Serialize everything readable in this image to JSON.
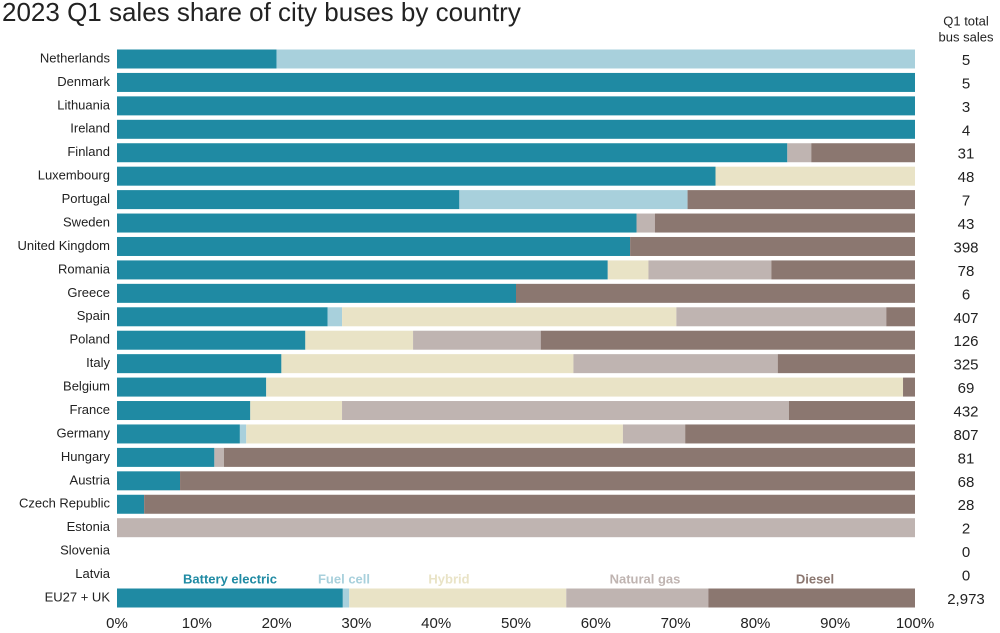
{
  "chart_data": {
    "type": "stacked_bar",
    "orientation": "horizontal",
    "title": "2023 Q1 sales share of city buses by country",
    "categories": [
      "Netherlands",
      "Denmark",
      "Lithuania",
      "Ireland",
      "Finland",
      "Luxembourg",
      "Portugal",
      "Sweden",
      "United Kingdom",
      "Romania",
      "Greece",
      "Spain",
      "Poland",
      "Italy",
      "Belgium",
      "France",
      "Germany",
      "Hungary",
      "Austria",
      "Czech Republic",
      "Estonia",
      "Slovenia",
      "Latvia",
      "EU27 + UK"
    ],
    "series": [
      {
        "name": "Battery electric",
        "color": "#1f8aa3",
        "values": [
          20,
          100,
          100,
          100,
          84,
          75,
          42.9,
          65.1,
          64.3,
          61.5,
          50,
          26.4,
          23.6,
          20.6,
          18.7,
          16.7,
          15.4,
          12.2,
          7.9,
          3.4,
          0,
          0,
          0,
          28.3
        ]
      },
      {
        "name": "Fuel cell",
        "color": "#a8d0dc",
        "values": [
          80,
          0,
          0,
          0,
          0,
          0,
          28.6,
          0,
          0,
          0,
          0,
          1.8,
          0,
          0,
          0,
          0,
          0.8,
          0,
          0,
          0,
          0,
          0,
          0,
          0.8
        ]
      },
      {
        "name": "Hybrid",
        "color": "#e9e3c6",
        "values": [
          0,
          0,
          0,
          0,
          0,
          25,
          0,
          0,
          0,
          5.1,
          0,
          41.9,
          13.5,
          36.6,
          79.8,
          11.5,
          47.2,
          0,
          0,
          0,
          0,
          0,
          0,
          27.2
        ]
      },
      {
        "name": "Natural gas",
        "color": "#bfb4b1",
        "values": [
          0,
          0,
          0,
          0,
          3,
          0,
          0,
          2.3,
          0,
          15.4,
          0,
          26.3,
          16,
          25.6,
          0,
          56,
          7.8,
          1.2,
          0,
          0,
          100,
          0,
          0,
          17.8
        ]
      },
      {
        "name": "Diesel",
        "color": "#8b7770",
        "values": [
          0,
          0,
          0,
          0,
          13,
          0,
          28.5,
          32.6,
          35.7,
          18,
          50,
          3.6,
          46.9,
          17.2,
          1.5,
          15.8,
          28.8,
          86.6,
          92.1,
          96.6,
          0,
          0,
          0,
          25.9
        ]
      }
    ],
    "xlim": [
      0,
      100
    ],
    "xticks": [
      {
        "value": 0,
        "label": "0%"
      },
      {
        "value": 10,
        "label": "10%"
      },
      {
        "value": 20,
        "label": "20%"
      },
      {
        "value": 30,
        "label": "30%"
      },
      {
        "value": 40,
        "label": "40%"
      },
      {
        "value": 50,
        "label": "50%"
      },
      {
        "value": 60,
        "label": "60%"
      },
      {
        "value": 70,
        "label": "70%"
      },
      {
        "value": 80,
        "label": "80%"
      },
      {
        "value": 90,
        "label": "90%"
      },
      {
        "value": 100,
        "label": "100%"
      }
    ],
    "totals": {
      "title": [
        "Q1 total",
        "bus sales"
      ],
      "values": [
        5,
        5,
        3,
        4,
        31,
        48,
        7,
        43,
        398,
        78,
        6,
        407,
        126,
        325,
        69,
        432,
        807,
        81,
        68,
        28,
        2,
        0,
        0,
        2973
      ],
      "value_labels": [
        "5",
        "5",
        "3",
        "4",
        "31",
        "48",
        "7",
        "43",
        "398",
        "78",
        "6",
        "407",
        "126",
        "325",
        "69",
        "432",
        "807",
        "81",
        "68",
        "28",
        "2",
        "0",
        "0",
        "2,973"
      ]
    }
  }
}
